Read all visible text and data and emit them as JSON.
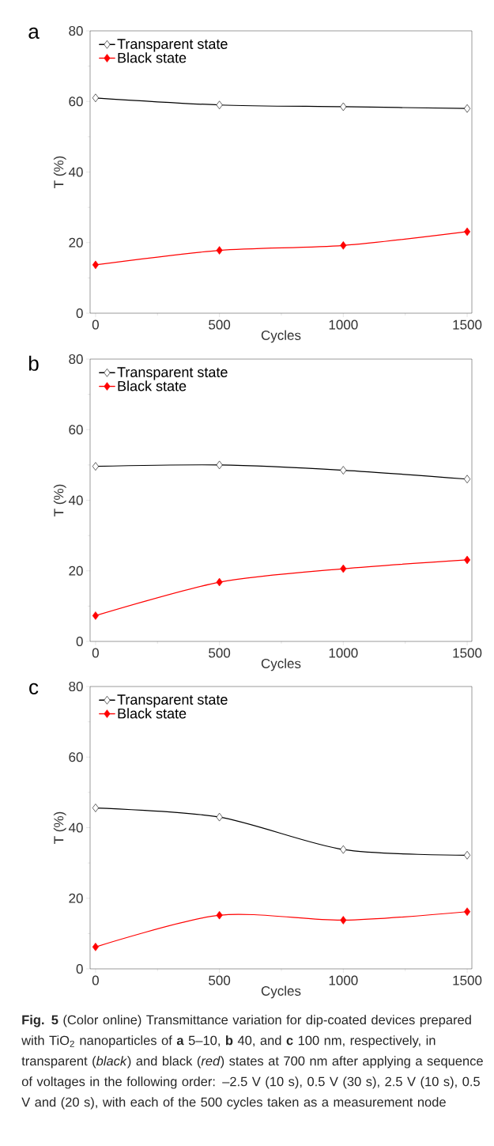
{
  "chart_data": [
    {
      "type": "line",
      "title": "a",
      "xlabel": "Cycles",
      "ylabel": "T (%)",
      "x": [
        0,
        500,
        1000,
        1500
      ],
      "series": [
        {
          "name": "Transparent state",
          "color": "#000000",
          "values": [
            61,
            59,
            58.5,
            58
          ]
        },
        {
          "name": "Black state",
          "color": "#ff0000",
          "values": [
            13.7,
            17.8,
            19.2,
            23.1
          ]
        }
      ],
      "xlim": [
        -22,
        1519
      ],
      "xticks": [
        0,
        500,
        1000,
        1500
      ],
      "ylim": [
        0,
        80
      ],
      "yticks": [
        0,
        20,
        40,
        60,
        80
      ],
      "marker": "diamond",
      "legend": "top left",
      "grid": false
    },
    {
      "type": "line",
      "title": "b",
      "xlabel": "Cycles",
      "ylabel": "T (%)",
      "x": [
        0,
        500,
        1000,
        1500
      ],
      "series": [
        {
          "name": "Transparent state",
          "color": "#000000",
          "values": [
            49.6,
            50,
            48.5,
            46
          ]
        },
        {
          "name": "Black state",
          "color": "#ff0000",
          "values": [
            7.3,
            16.8,
            20.6,
            23.1
          ]
        }
      ],
      "xlim": [
        -22,
        1519
      ],
      "xticks": [
        0,
        500,
        1000,
        1500
      ],
      "ylim": [
        0,
        80
      ],
      "yticks": [
        0,
        20,
        40,
        60,
        80
      ],
      "marker": "diamond",
      "legend": "top left",
      "grid": false
    },
    {
      "type": "line",
      "title": "c",
      "xlabel": "Cycles",
      "ylabel": "T (%)",
      "x": [
        0,
        500,
        1000,
        1500
      ],
      "series": [
        {
          "name": "Transparent state",
          "color": "#000000",
          "values": [
            45.6,
            43,
            33.8,
            32.2
          ]
        },
        {
          "name": "Black state",
          "color": "#ff0000",
          "values": [
            6.2,
            15.2,
            13.8,
            16.2
          ]
        }
      ],
      "xlim": [
        -22,
        1519
      ],
      "xticks": [
        0,
        500,
        1000,
        1500
      ],
      "ylim": [
        0,
        80
      ],
      "yticks": [
        0,
        20,
        40,
        60,
        80
      ],
      "marker": "diamond",
      "legend": "top left",
      "grid": false,
      "annotations": [
        "**Fig. 5** (Color online) Transmittance variation for dip-coated devices prepared with TiO$_{2}$ nanoparticles of **a** 5–10, **b** 40, and **c** 100 nm, respectively, in transparent (*black*) and black (*red*) states at 700 nm after applying a sequence of voltages in the following order: –2.5 V (10 s), 0.5 V (30 s), 2.5 V (10 s), 0.5 V and (20 s), with each of the 500 cycles taken as a measurement node"
      ]
    }
  ]
}
